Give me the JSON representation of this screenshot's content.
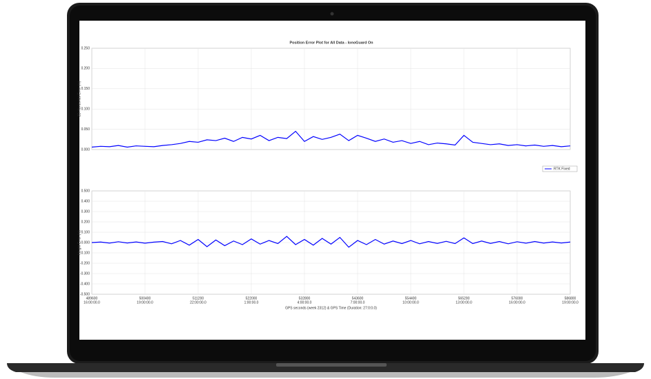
{
  "chart_data": [
    {
      "type": "line",
      "title": "Position Error Plot for All Data - IonoGuard On",
      "ylabel": "2D Horizontal Error (m)",
      "x": [
        489600,
        491400,
        493200,
        495000,
        496800,
        498600,
        500400,
        502200,
        504000,
        505800,
        507600,
        509400,
        511200,
        513000,
        514800,
        516600,
        518400,
        520200,
        522000,
        523800,
        525600,
        527400,
        529200,
        531000,
        532800,
        534600,
        536400,
        538200,
        540000,
        541800,
        543600,
        545400,
        547200,
        549000,
        550800,
        552600,
        554400,
        556200,
        558000,
        559800,
        561600,
        563400,
        565200,
        567000,
        568800,
        570600,
        572400,
        574200,
        576000,
        577800,
        579600,
        581400,
        583200,
        585000,
        586800
      ],
      "series": [
        {
          "name": "RTK Fixed",
          "color": "#0000ff",
          "values": [
            0.006,
            0.008,
            0.007,
            0.01,
            0.006,
            0.009,
            0.008,
            0.007,
            0.01,
            0.012,
            0.015,
            0.02,
            0.018,
            0.024,
            0.022,
            0.028,
            0.02,
            0.03,
            0.026,
            0.035,
            0.022,
            0.03,
            0.027,
            0.045,
            0.02,
            0.032,
            0.025,
            0.03,
            0.038,
            0.022,
            0.035,
            0.028,
            0.02,
            0.026,
            0.018,
            0.022,
            0.015,
            0.02,
            0.012,
            0.016,
            0.014,
            0.011,
            0.035,
            0.018,
            0.015,
            0.012,
            0.014,
            0.01,
            0.012,
            0.009,
            0.011,
            0.008,
            0.01,
            0.007,
            0.009
          ]
        }
      ],
      "xlim": [
        489600,
        586800
      ],
      "xticks": [
        489600,
        500400,
        511200,
        522000,
        532800,
        543600,
        554400,
        565200,
        576000,
        586800
      ],
      "ylim": [
        0,
        0.25
      ],
      "yticks": [
        {
          "value": 0,
          "label": "0.000"
        },
        {
          "value": 0.05,
          "label": "0.050"
        },
        {
          "value": 0.1,
          "label": "0.100"
        },
        {
          "value": 0.15,
          "label": "0.150"
        },
        {
          "value": 0.2,
          "label": "0.200"
        },
        {
          "value": 0.25,
          "label": "0.250"
        }
      ],
      "grid": true,
      "legend": "right"
    },
    {
      "type": "line",
      "ylabel": "Height Error (m)",
      "xlabel": "GPS seconds (week 2312) & GPS Time (Duration: 27:0:0.0)",
      "x": [
        489600,
        491400,
        493200,
        495000,
        496800,
        498600,
        500400,
        502200,
        504000,
        505800,
        507600,
        509400,
        511200,
        513000,
        514800,
        516600,
        518400,
        520200,
        522000,
        523800,
        525600,
        527400,
        529200,
        531000,
        532800,
        534600,
        536400,
        538200,
        540000,
        541800,
        543600,
        545400,
        547200,
        549000,
        550800,
        552600,
        554400,
        556200,
        558000,
        559800,
        561600,
        563400,
        565200,
        567000,
        568800,
        570600,
        572400,
        574200,
        576000,
        577800,
        579600,
        581400,
        583200,
        585000,
        586800
      ],
      "series": [
        {
          "color": "#0000ff",
          "values": [
            0.0,
            0.005,
            -0.005,
            0.008,
            -0.004,
            0.006,
            -0.006,
            0.004,
            0.01,
            -0.012,
            0.02,
            -0.025,
            0.03,
            -0.04,
            0.025,
            -0.03,
            0.015,
            -0.02,
            0.035,
            -0.015,
            0.02,
            -0.01,
            0.06,
            -0.02,
            0.03,
            -0.025,
            0.04,
            -0.015,
            0.05,
            -0.045,
            0.02,
            -0.02,
            0.03,
            -0.015,
            0.015,
            -0.01,
            0.02,
            -0.012,
            0.01,
            -0.008,
            0.012,
            -0.01,
            0.045,
            -0.01,
            0.015,
            -0.008,
            0.01,
            -0.012,
            0.008,
            -0.006,
            0.01,
            -0.005,
            0.006,
            -0.004,
            0.005
          ]
        }
      ],
      "xlim": [
        489600,
        586800
      ],
      "xticks": [
        489600,
        500400,
        511200,
        522000,
        532800,
        543600,
        554400,
        565200,
        576000,
        586800
      ],
      "xtick_sublabels": [
        "16:00:00.0",
        "19:00:00.0",
        "22:00:00.0",
        "1:00:00.0",
        "4:00:00.0",
        "7:00:00.0",
        "10:00:00.0",
        "13:00:00.0",
        "16:00:00.0",
        "19:00:00.0"
      ],
      "ylim": [
        -0.5,
        0.5
      ],
      "yticks": [
        {
          "value": -0.5,
          "label": "-0.500"
        },
        {
          "value": -0.4,
          "label": "-0.400"
        },
        {
          "value": -0.3,
          "label": "-0.300"
        },
        {
          "value": -0.2,
          "label": "-0.200"
        },
        {
          "value": -0.1,
          "label": "-0.100"
        },
        {
          "value": 0,
          "label": "0.000"
        },
        {
          "value": 0.1,
          "label": "0.100"
        },
        {
          "value": 0.2,
          "label": "0.200"
        },
        {
          "value": 0.3,
          "label": "0.300"
        },
        {
          "value": 0.4,
          "label": "0.400"
        },
        {
          "value": 0.5,
          "label": "0.500"
        }
      ],
      "grid": true
    }
  ]
}
